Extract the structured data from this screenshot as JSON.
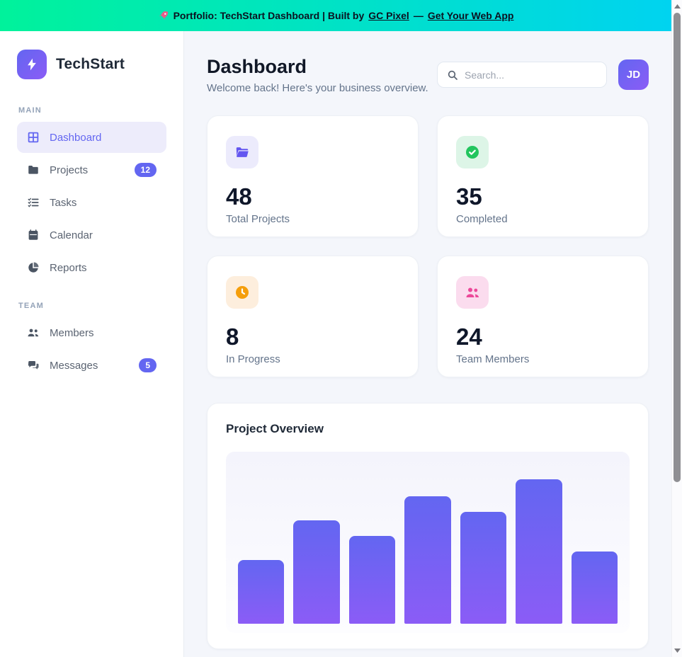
{
  "banner": {
    "text_prefix": "Portfolio: TechStart Dashboard | Built by ",
    "link_author": "GC Pixel",
    "separator": " — ",
    "link_cta": "Get Your Web App"
  },
  "sidebar": {
    "brand": "TechStart",
    "sections": [
      {
        "label": "MAIN",
        "items": [
          {
            "label": "Dashboard",
            "active": true
          },
          {
            "label": "Projects",
            "badge": "12"
          },
          {
            "label": "Tasks"
          },
          {
            "label": "Calendar"
          },
          {
            "label": "Reports"
          }
        ]
      },
      {
        "label": "TEAM",
        "items": [
          {
            "label": "Members"
          },
          {
            "label": "Messages",
            "badge": "5"
          }
        ]
      }
    ]
  },
  "header": {
    "title": "Dashboard",
    "subtitle": "Welcome back! Here's your business overview.",
    "search_placeholder": "Search...",
    "avatar_initials": "JD"
  },
  "stats": {
    "cards": [
      {
        "value": "48",
        "label": "Total Projects",
        "icon": "folder-icon",
        "accent": "#6356f0",
        "tile_bg": "#ecebfc"
      },
      {
        "value": "35",
        "label": "Completed",
        "icon": "check-circle-icon",
        "accent": "#22c55e",
        "tile_bg": "#ddf5e7"
      },
      {
        "value": "8",
        "label": "In Progress",
        "icon": "clock-icon",
        "accent": "#f59e0b",
        "tile_bg": "#fdeedd"
      },
      {
        "value": "24",
        "label": "Team Members",
        "icon": "people-icon",
        "accent": "#ec4899",
        "tile_bg": "#fbdcee"
      }
    ]
  },
  "chart": {
    "title": "Project Overview"
  },
  "chart_data": {
    "type": "bar",
    "title": "Project Overview",
    "categories": [
      "",
      "",
      "",
      "",
      "",
      "",
      ""
    ],
    "values_percent": [
      37,
      60,
      51,
      74,
      65,
      84,
      42
    ],
    "note": "7 unlabeled bars; heights estimated as percent of plot height, no axes/gridlines/labels shown",
    "ylim": [
      0,
      100
    ],
    "bar_gradient": [
      "#6366f1",
      "#8b5cf6"
    ],
    "plot_bg": "#f4f4fc",
    "legend": "none"
  },
  "colors": {
    "accent_indigo": "#6366f1",
    "accent_purple": "#8b5cf6",
    "banner_green": "#00f29b",
    "banner_cyan": "#00d3f0",
    "success_green": "#22c55e",
    "warning_orange": "#f59e0b",
    "pink": "#ec4899",
    "page_bg": "#f4f6fb"
  }
}
